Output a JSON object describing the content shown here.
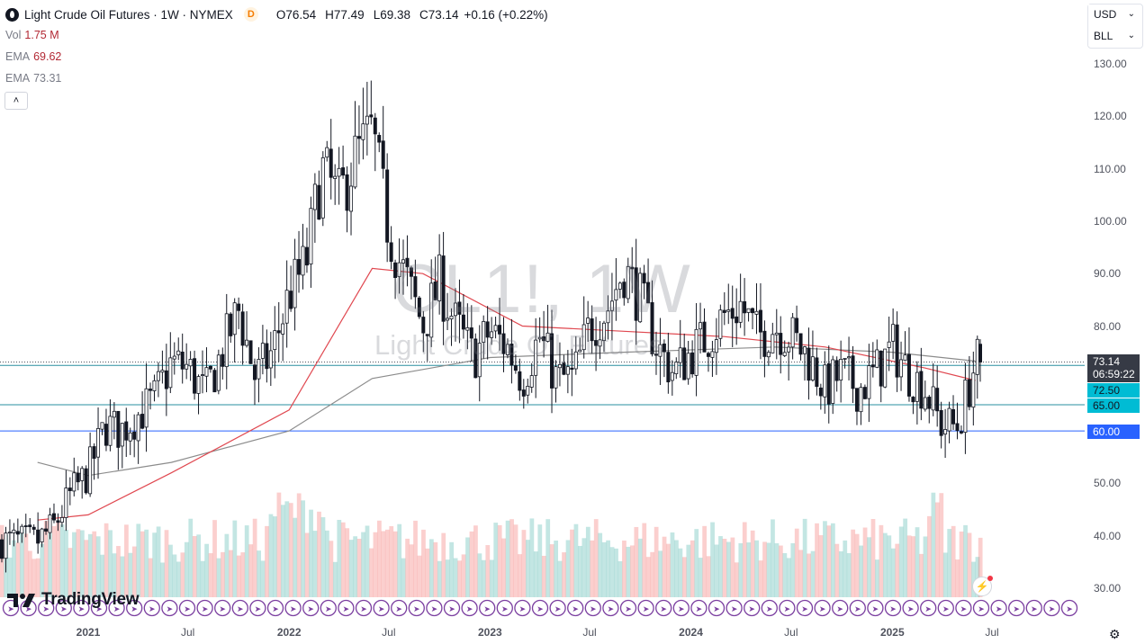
{
  "header": {
    "title": "Light Crude Oil Futures · 1W · NYMEX",
    "badge": "D",
    "open_label": "O",
    "open": "76.54",
    "high_label": "H",
    "high": "77.49",
    "low_label": "L",
    "low": "69.38",
    "close_label": "C",
    "close": "73.14",
    "change": "+0.16 (+0.22%)"
  },
  "indicators": [
    {
      "label": "Vol",
      "value": "1.75 M"
    },
    {
      "label": "EMA",
      "value": "69.62"
    },
    {
      "label": "EMA",
      "value": "73.31"
    }
  ],
  "collapse_icon": "chevron-up-icon",
  "currency_select": "USD",
  "unit_select": "BLL",
  "watermark": {
    "symbol": "CL1!, 1W",
    "name": "Light Crude Oil Futures"
  },
  "price_tags": {
    "last_price": "73.14",
    "countdown": "06:59:22",
    "level_1": "72.50",
    "level_2": "65.00",
    "level_3": "60.00"
  },
  "branding": {
    "logo_text": "TradingView"
  },
  "colors": {
    "up": "#26a69a",
    "down": "#ef5350",
    "ema_fast": "#e04850",
    "ema_slow": "#8c8c8c",
    "level_cyan": "#00bcd4",
    "level_blue": "#2962ff"
  },
  "chart_data": {
    "type": "candlestick",
    "interval": "1W",
    "y_axis": {
      "ticks": [
        "130.00",
        "120.00",
        "110.00",
        "100.00",
        "90.00",
        "80.00",
        "70.00",
        "60.00",
        "50.00",
        "40.00",
        "30.00"
      ],
      "position": "right"
    },
    "x_axis": {
      "ticks": [
        "2021",
        "Jul",
        "2022",
        "Jul",
        "2023",
        "Jul",
        "2024",
        "Jul",
        "2025",
        "Jul"
      ]
    },
    "horizontal_levels": [
      72.5,
      65.0,
      60.0
    ],
    "last": {
      "open": 76.54,
      "high": 77.49,
      "low": 69.38,
      "close": 73.14
    },
    "price_path": [
      {
        "date": "2020-10",
        "price": 39
      },
      {
        "date": "2020-11",
        "price": 42
      },
      {
        "date": "2020-12",
        "price": 48
      },
      {
        "date": "2021-01",
        "price": 52
      },
      {
        "date": "2021-02",
        "price": 61
      },
      {
        "date": "2021-03",
        "price": 60
      },
      {
        "date": "2021-04",
        "price": 63
      },
      {
        "date": "2021-05",
        "price": 66
      },
      {
        "date": "2021-06",
        "price": 73
      },
      {
        "date": "2021-07",
        "price": 72
      },
      {
        "date": "2021-08",
        "price": 67
      },
      {
        "date": "2021-09",
        "price": 75
      },
      {
        "date": "2021-10",
        "price": 83
      },
      {
        "date": "2021-11",
        "price": 70
      },
      {
        "date": "2021-12",
        "price": 75
      },
      {
        "date": "2022-01",
        "price": 86
      },
      {
        "date": "2022-02",
        "price": 92
      },
      {
        "date": "2022-03",
        "price": 110
      },
      {
        "date": "2022-04",
        "price": 104
      },
      {
        "date": "2022-05",
        "price": 112
      },
      {
        "date": "2022-06",
        "price": 117
      },
      {
        "date": "2022-07",
        "price": 98
      },
      {
        "date": "2022-08",
        "price": 89
      },
      {
        "date": "2022-09",
        "price": 80
      },
      {
        "date": "2022-10",
        "price": 88
      },
      {
        "date": "2022-11",
        "price": 80
      },
      {
        "date": "2022-12",
        "price": 74
      },
      {
        "date": "2023-01",
        "price": 79
      },
      {
        "date": "2023-02",
        "price": 76
      },
      {
        "date": "2023-03",
        "price": 70
      },
      {
        "date": "2023-04",
        "price": 78
      },
      {
        "date": "2023-05",
        "price": 70
      },
      {
        "date": "2023-06",
        "price": 70
      },
      {
        "date": "2023-07",
        "price": 80
      },
      {
        "date": "2023-08",
        "price": 83
      },
      {
        "date": "2023-09",
        "price": 91
      },
      {
        "date": "2023-10",
        "price": 85
      },
      {
        "date": "2023-11",
        "price": 76
      },
      {
        "date": "2023-12",
        "price": 71
      },
      {
        "date": "2024-01",
        "price": 75
      },
      {
        "date": "2024-02",
        "price": 78
      },
      {
        "date": "2024-03",
        "price": 82
      },
      {
        "date": "2024-04",
        "price": 84
      },
      {
        "date": "2024-05",
        "price": 78
      },
      {
        "date": "2024-06",
        "price": 80
      },
      {
        "date": "2024-07",
        "price": 78
      },
      {
        "date": "2024-08",
        "price": 74
      },
      {
        "date": "2024-09",
        "price": 68
      },
      {
        "date": "2024-10",
        "price": 71
      },
      {
        "date": "2024-11",
        "price": 68
      },
      {
        "date": "2024-12",
        "price": 71
      },
      {
        "date": "2025-01",
        "price": 76
      },
      {
        "date": "2025-02",
        "price": 71
      },
      {
        "date": "2025-03",
        "price": 68
      },
      {
        "date": "2025-04",
        "price": 61
      },
      {
        "date": "2025-05",
        "price": 61
      },
      {
        "date": "2025-06",
        "price": 73
      }
    ],
    "ema_fast_path": [
      {
        "date": "2020-10",
        "value": 43
      },
      {
        "date": "2021-01",
        "value": 44
      },
      {
        "date": "2021-06",
        "value": 52
      },
      {
        "date": "2022-01",
        "value": 64
      },
      {
        "date": "2022-06",
        "value": 91
      },
      {
        "date": "2022-09",
        "value": 90
      },
      {
        "date": "2023-03",
        "value": 80
      },
      {
        "date": "2023-09",
        "value": 79
      },
      {
        "date": "2024-03",
        "value": 78
      },
      {
        "date": "2024-09",
        "value": 76
      },
      {
        "date": "2025-03",
        "value": 72
      },
      {
        "date": "2025-06",
        "value": 69.62
      }
    ],
    "ema_slow_path": [
      {
        "date": "2020-10",
        "value": 54
      },
      {
        "date": "2021-01",
        "value": 51.5
      },
      {
        "date": "2021-06",
        "value": 54
      },
      {
        "date": "2022-01",
        "value": 60
      },
      {
        "date": "2022-06",
        "value": 70
      },
      {
        "date": "2023-01",
        "value": 74
      },
      {
        "date": "2023-09",
        "value": 75
      },
      {
        "date": "2024-06",
        "value": 76
      },
      {
        "date": "2025-01",
        "value": 75
      },
      {
        "date": "2025-06",
        "value": 73.31
      }
    ]
  }
}
